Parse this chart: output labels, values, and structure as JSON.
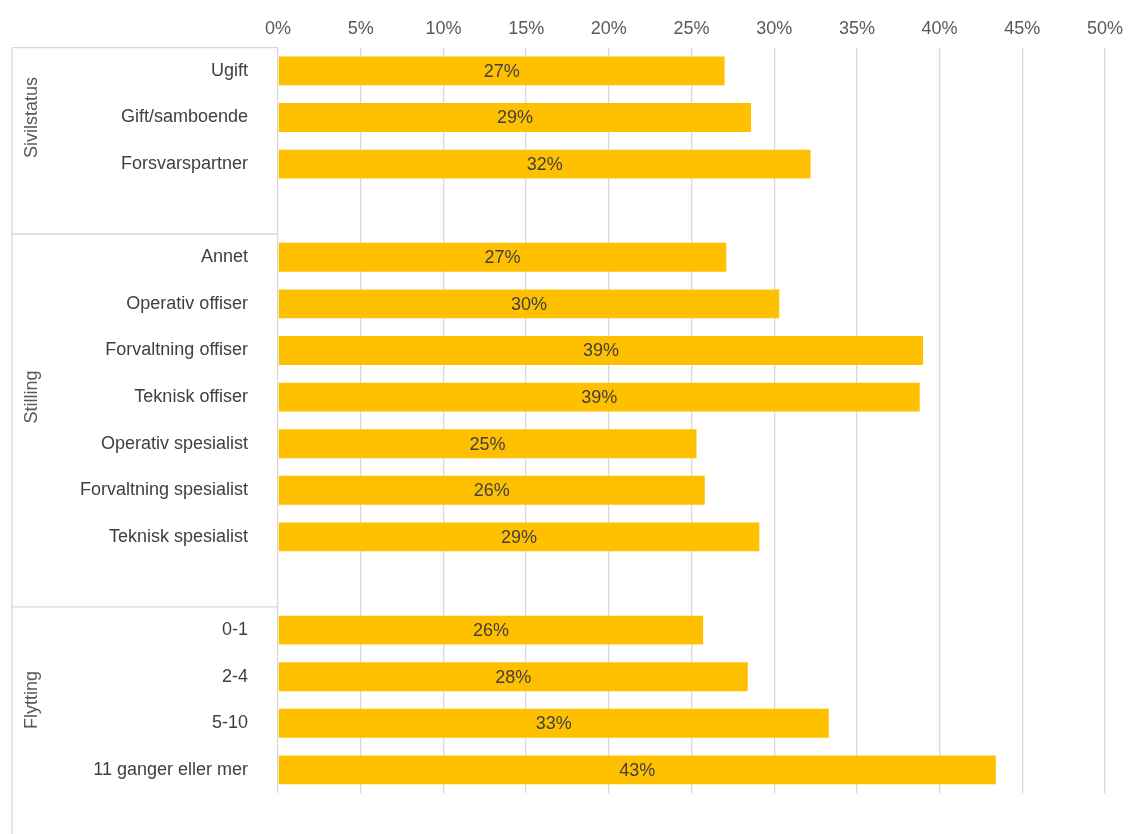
{
  "chart_data": {
    "type": "bar",
    "orientation": "horizontal",
    "categories": [
      "Ugift",
      "Gift/samboende",
      "Forsvarspartner",
      null,
      "Annet",
      "Operativ offiser",
      "Forvaltning offiser",
      "Teknisk offiser",
      "Operativ spesialist",
      "Forvaltning spesialist",
      "Teknisk spesialist",
      null,
      "0-1",
      "2-4",
      "5-10",
      "11 ganger eller mer"
    ],
    "values": [
      27.0,
      28.6,
      32.2,
      null,
      27.1,
      30.3,
      39.0,
      38.8,
      25.3,
      25.8,
      29.1,
      null,
      25.7,
      28.4,
      33.3,
      43.4
    ],
    "value_labels": [
      "27%",
      "29%",
      "32%",
      null,
      "27%",
      "30%",
      "39%",
      "39%",
      "25%",
      "26%",
      "29%",
      null,
      "26%",
      "28%",
      "33%",
      "43%"
    ],
    "color": "#ffc000",
    "xlim": [
      0,
      50
    ],
    "xticks": [
      {
        "value": 0,
        "label": "0%"
      },
      {
        "value": 5,
        "label": "5%"
      },
      {
        "value": 10,
        "label": "10%"
      },
      {
        "value": 15,
        "label": "15%"
      },
      {
        "value": 20,
        "label": "20%"
      },
      {
        "value": 25,
        "label": "25%"
      },
      {
        "value": 30,
        "label": "30%"
      },
      {
        "value": 35,
        "label": "35%"
      },
      {
        "value": 40,
        "label": "40%"
      },
      {
        "value": 45,
        "label": "45%"
      },
      {
        "value": 50,
        "label": "50%"
      }
    ],
    "annotations": [
      "Sivilstatus",
      "Stilling",
      "Flytting"
    ],
    "grid": "x",
    "legend": false
  }
}
